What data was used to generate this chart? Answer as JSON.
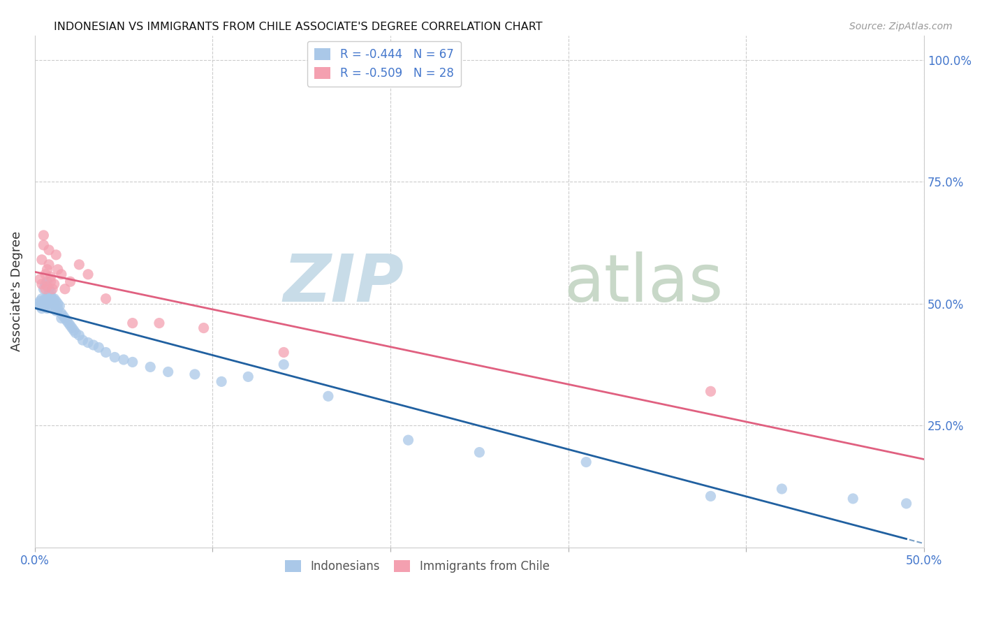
{
  "title": "INDONESIAN VS IMMIGRANTS FROM CHILE ASSOCIATE'S DEGREE CORRELATION CHART",
  "source": "Source: ZipAtlas.com",
  "ylabel": "Associate's Degree",
  "xlim": [
    0.0,
    0.5
  ],
  "ylim": [
    0.0,
    1.05
  ],
  "color_blue": "#aac8e8",
  "color_pink": "#f4a0b0",
  "color_line_blue": "#2060a0",
  "color_line_pink": "#e06080",
  "legend_line1": "R = -0.444   N = 67",
  "legend_line2": "R = -0.509   N = 28",
  "legend_label1": "Indonesians",
  "legend_label2": "Immigrants from Chile",
  "indo_x": [
    0.002,
    0.003,
    0.003,
    0.004,
    0.004,
    0.004,
    0.005,
    0.005,
    0.005,
    0.006,
    0.006,
    0.006,
    0.006,
    0.007,
    0.007,
    0.007,
    0.007,
    0.008,
    0.008,
    0.008,
    0.008,
    0.009,
    0.009,
    0.009,
    0.01,
    0.01,
    0.01,
    0.011,
    0.011,
    0.012,
    0.012,
    0.013,
    0.013,
    0.014,
    0.015,
    0.015,
    0.016,
    0.017,
    0.018,
    0.019,
    0.02,
    0.021,
    0.022,
    0.023,
    0.025,
    0.027,
    0.03,
    0.033,
    0.036,
    0.04,
    0.045,
    0.05,
    0.055,
    0.065,
    0.075,
    0.09,
    0.105,
    0.12,
    0.14,
    0.165,
    0.21,
    0.25,
    0.31,
    0.38,
    0.42,
    0.46,
    0.49
  ],
  "indo_y": [
    0.5,
    0.505,
    0.495,
    0.51,
    0.5,
    0.49,
    0.505,
    0.495,
    0.53,
    0.51,
    0.505,
    0.495,
    0.54,
    0.51,
    0.5,
    0.49,
    0.545,
    0.53,
    0.52,
    0.51,
    0.505,
    0.525,
    0.515,
    0.505,
    0.51,
    0.5,
    0.49,
    0.51,
    0.5,
    0.505,
    0.485,
    0.5,
    0.49,
    0.495,
    0.48,
    0.47,
    0.475,
    0.47,
    0.465,
    0.46,
    0.455,
    0.45,
    0.445,
    0.44,
    0.435,
    0.425,
    0.42,
    0.415,
    0.41,
    0.4,
    0.39,
    0.385,
    0.38,
    0.37,
    0.36,
    0.355,
    0.34,
    0.35,
    0.375,
    0.31,
    0.22,
    0.195,
    0.175,
    0.105,
    0.12,
    0.1,
    0.09
  ],
  "chile_x": [
    0.003,
    0.004,
    0.004,
    0.005,
    0.005,
    0.006,
    0.006,
    0.007,
    0.007,
    0.008,
    0.008,
    0.009,
    0.009,
    0.01,
    0.011,
    0.012,
    0.013,
    0.015,
    0.017,
    0.02,
    0.025,
    0.03,
    0.04,
    0.055,
    0.07,
    0.095,
    0.14,
    0.38
  ],
  "chile_y": [
    0.55,
    0.54,
    0.59,
    0.62,
    0.64,
    0.53,
    0.56,
    0.535,
    0.57,
    0.58,
    0.61,
    0.545,
    0.555,
    0.53,
    0.54,
    0.6,
    0.57,
    0.56,
    0.53,
    0.545,
    0.58,
    0.56,
    0.51,
    0.46,
    0.46,
    0.45,
    0.4,
    0.32
  ],
  "watermark_zip_color": "#c8dce8",
  "watermark_atlas_color": "#c8d8c8"
}
